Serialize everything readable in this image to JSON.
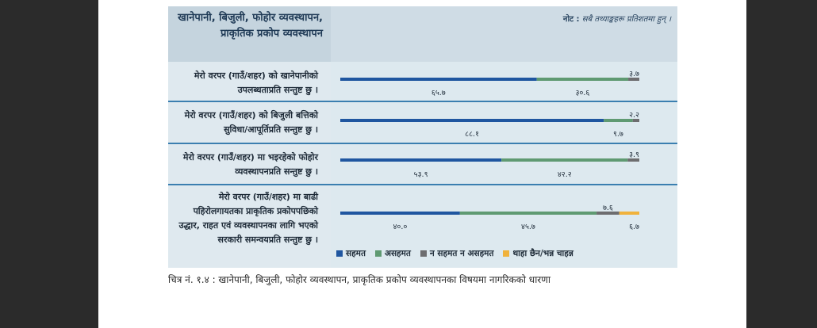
{
  "header": {
    "title": "खानेपानी, बिजुली, फोहोर व्यवस्थापन, प्राकृतिक प्रकोप व्यवस्थापन",
    "note_label": "नोट :",
    "note_text": "सबै तथ्याङ्कहरू प्रतिशतमा हुन् ।"
  },
  "caption": "चित्र नं. १.४ : खानेपानी, बिजुली, फोहोर व्यवस्थापन, प्राकृतिक प्रकोप व्यवस्थापनका विषयमा नागरिकको धारणा",
  "chart_data": {
    "type": "bar",
    "stacked": true,
    "orientation": "horizontal",
    "unit": "%",
    "categories": [
      "मेरो वरपर (गाउँ/शहर) को खानेपानीको उपलब्धताप्रति सन्तुष्ट छु ।",
      "मेरो वरपर (गाउँ/शहर) को बिजुली बत्तिको सुविधा/आपूर्तिप्रति सन्तुष्ट छु ।",
      "मेरो वरपर (गाउँ/शहर) मा भइरहेको फोहोर व्यवस्थापनप्रति सन्तुष्ट छु ।",
      "मेरो वरपर (गाउँ/शहर) मा बाढी पहिरोलगायतका प्राकृतिक प्रकोपपछिको उद्धार, राहत एवं व्यवस्थापनका लागि भएको सरकारी समन्वयप्रति सन्तुष्ट छु ।"
    ],
    "series": [
      {
        "name": "सहमत",
        "color": "#1f56a0",
        "values": [
          65.7,
          88.1,
          53.9,
          40.0
        ],
        "labels": [
          "६५.७",
          "८८.१",
          "५३.९",
          "४०.०"
        ]
      },
      {
        "name": "असहमत",
        "color": "#5f9a72",
        "values": [
          30.6,
          9.7,
          42.2,
          45.7
        ],
        "labels": [
          "३०.६",
          "९.७",
          "४२.२",
          "४५.७"
        ]
      },
      {
        "name": "न सहमत न असहमत",
        "color": "#6d6d6f",
        "values": [
          3.7,
          2.2,
          3.9,
          7.6
        ],
        "labels": [
          "३.७",
          "२.२",
          "३.९",
          "७.६"
        ]
      },
      {
        "name": "थाहा छैन/भन्न चाहन्न",
        "color": "#f0b23c",
        "values": [
          0,
          0,
          0,
          6.7
        ],
        "labels": [
          "",
          "",
          "",
          "६.७"
        ]
      }
    ],
    "xlim": [
      0,
      100
    ],
    "legend_position": "bottom"
  }
}
